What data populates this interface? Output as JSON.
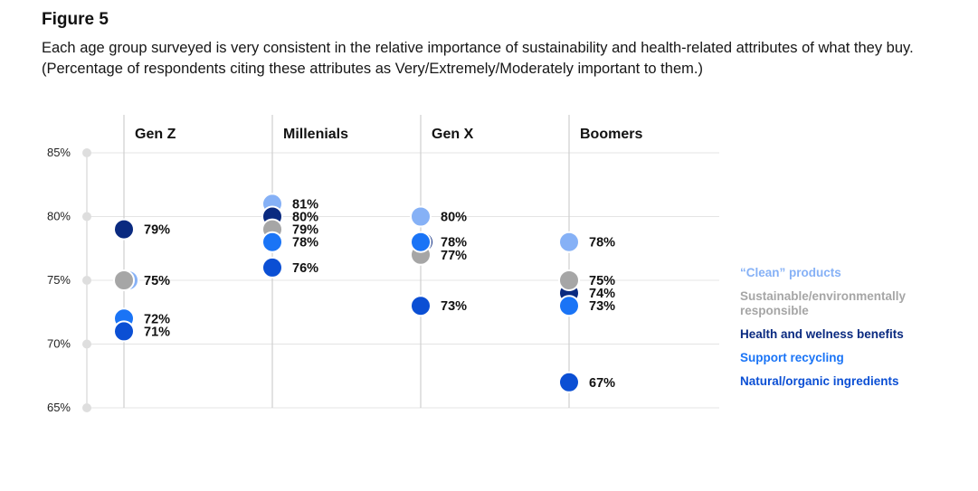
{
  "figure_label": "Figure 5",
  "caption": "Each age group surveyed is very consistent in the relative importance of sustainability and health-related attributes of what they buy. (Percentage of respondents citing these attributes as Very/Extremely/Moderately important to them.)",
  "colors": {
    "clean": "#86b1f6",
    "sustainable": "#a6a6a6",
    "health": "#0a2a80",
    "recycling": "#1a74f6",
    "natural": "#0b4fd4",
    "axis_dot": "#dedede",
    "gridline": "#e4e4e4",
    "group_line": "#cfcfcf"
  },
  "legend": [
    {
      "key": "clean",
      "label": "“Clean” products"
    },
    {
      "key": "sustainable",
      "label": "Sustainable/environmentally responsible"
    },
    {
      "key": "health",
      "label": "Health and welness benefits"
    },
    {
      "key": "recycling",
      "label": "Support recycling"
    },
    {
      "key": "natural",
      "label": "Natural/organic ingredients"
    }
  ],
  "chart_data": {
    "type": "scatter",
    "title": "",
    "categories": [
      "Gen Z",
      "Millenials",
      "Gen X",
      "Boomers"
    ],
    "y_ticks": [
      "85%",
      "80%",
      "75%",
      "70%",
      "65%"
    ],
    "ylim": [
      65,
      85
    ],
    "grid": true,
    "legend_position": "right",
    "series": [
      {
        "key": "clean",
        "name": "“Clean” products",
        "values": [
          75,
          81,
          80,
          78
        ]
      },
      {
        "key": "sustainable",
        "name": "Sustainable/environmentally responsible",
        "values": [
          75,
          79,
          77,
          75
        ]
      },
      {
        "key": "health",
        "name": "Health and welness benefits",
        "values": [
          79,
          80,
          78,
          74
        ]
      },
      {
        "key": "recycling",
        "name": "Support recycling",
        "values": [
          72,
          78,
          78,
          73
        ]
      },
      {
        "key": "natural",
        "name": "Natural/organic ingredients",
        "values": [
          71,
          76,
          73,
          67
        ]
      }
    ],
    "data_labels": [
      [
        "79%",
        "75%",
        "72%",
        "71%"
      ],
      [
        "81%",
        "80%",
        "79%",
        "78%",
        "76%"
      ],
      [
        "80%",
        "78%",
        "77%",
        "73%"
      ],
      [
        "78%",
        "75%",
        "74%",
        "73%",
        "67%"
      ]
    ]
  }
}
